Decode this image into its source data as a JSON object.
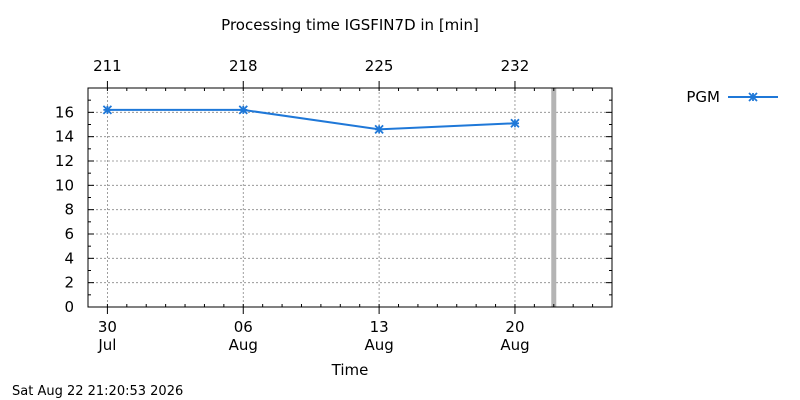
{
  "chart_data": {
    "type": "line",
    "title": "Processing time IGSFIN7D in [min]",
    "xlabel": "Time",
    "ylabel": "",
    "ylim": [
      0,
      18
    ],
    "yticks": [
      0,
      2,
      4,
      6,
      8,
      10,
      12,
      14,
      16
    ],
    "xlim": [
      "2026-07-29",
      "2026-08-25"
    ],
    "x_ticks": [
      {
        "date": "2026-07-30",
        "day": "30",
        "month": "Jul",
        "doy": "211"
      },
      {
        "date": "2026-08-06",
        "day": "06",
        "month": "Aug",
        "doy": "218"
      },
      {
        "date": "2026-08-13",
        "day": "13",
        "month": "Aug",
        "doy": "225"
      },
      {
        "date": "2026-08-20",
        "day": "20",
        "month": "Aug",
        "doy": "232"
      }
    ],
    "grid": true,
    "legend_position": "right of plot, top",
    "current_date_marker": "2026-08-22",
    "series": [
      {
        "name": "PGM",
        "color": "#1f78d8",
        "marker": "star",
        "x": [
          "2026-07-30",
          "2026-08-06",
          "2026-08-13",
          "2026-08-20"
        ],
        "y": [
          16.2,
          16.2,
          14.6,
          15.1
        ]
      }
    ]
  },
  "footer": {
    "timestamp": "Sat Aug 22 21:20:53 2026"
  }
}
